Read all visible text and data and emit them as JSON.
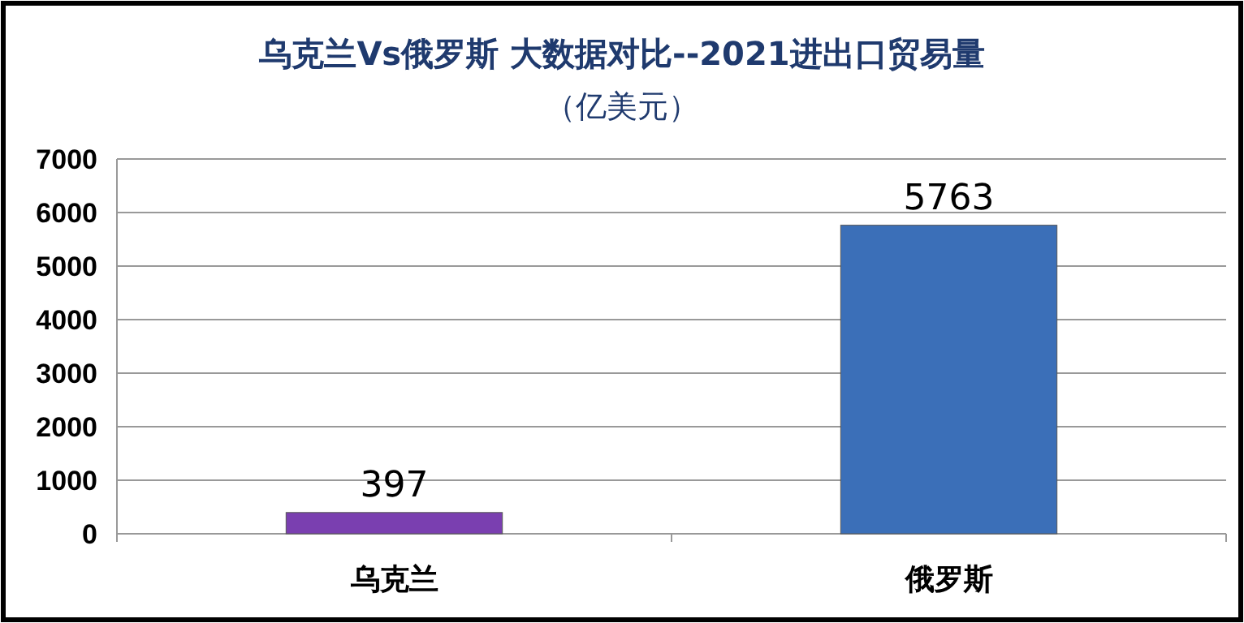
{
  "chart_data": {
    "type": "bar",
    "title": "乌克兰Vs俄罗斯 大数据对比--2021进出口贸易量",
    "subtitle": "（亿美元）",
    "categories": [
      "乌克兰",
      "俄罗斯"
    ],
    "values": [
      397,
      5763
    ],
    "colors": [
      "#7a3fb0",
      "#3b6fb8"
    ],
    "ylim": [
      0,
      7000
    ],
    "yticks": [
      0,
      1000,
      2000,
      3000,
      4000,
      5000,
      6000,
      7000
    ],
    "grid": "y",
    "data_labels": true
  }
}
